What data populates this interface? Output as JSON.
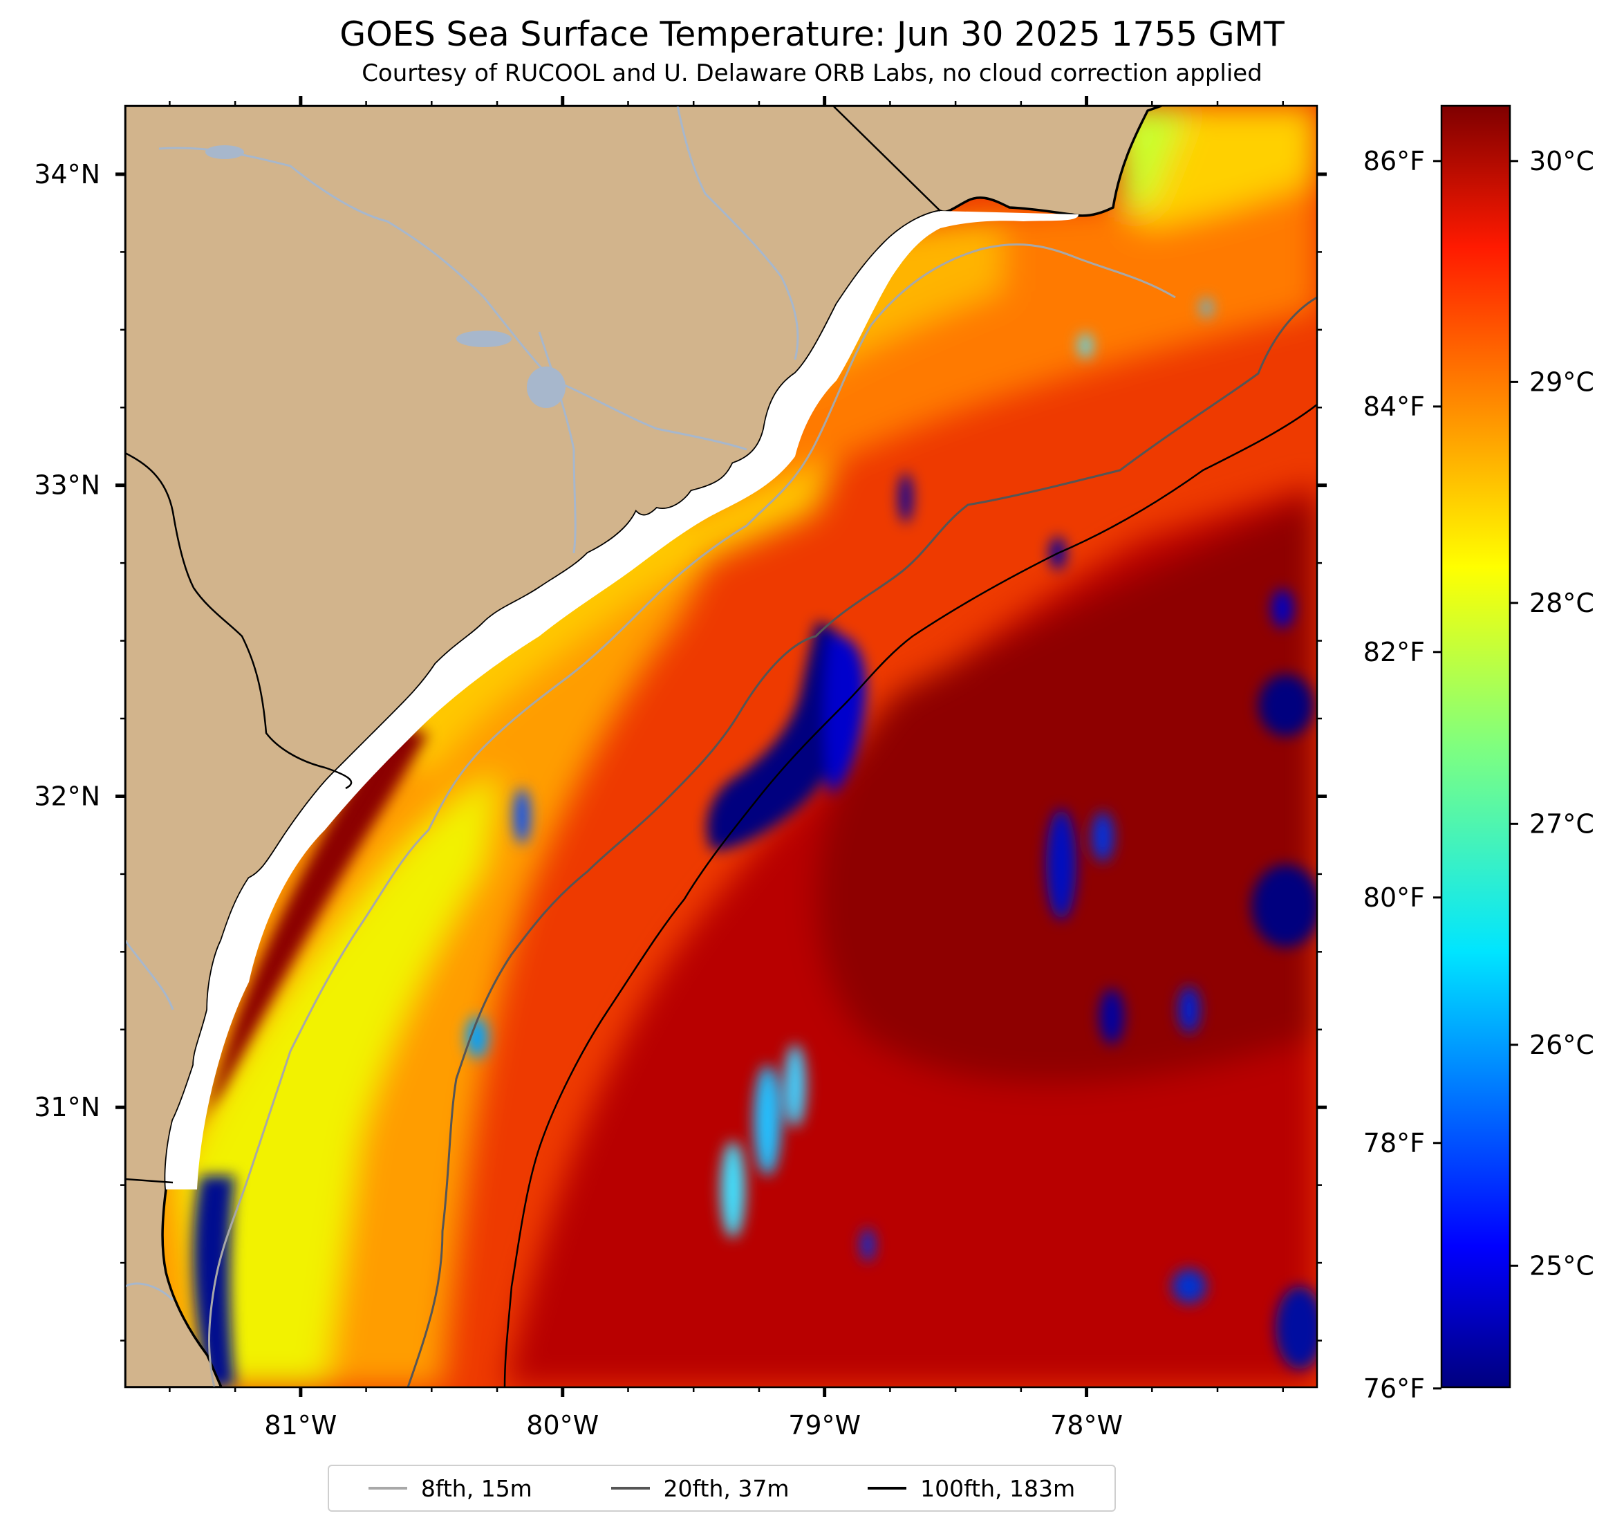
{
  "header": {
    "title": "GOES Sea Surface Temperature: Jun 30 2025 1755 GMT",
    "subtitle": "Courtesy of RUCOOL and U. Delaware ORB Labs, no cloud correction applied"
  },
  "map": {
    "lon_range": [
      -81.67,
      -77.12
    ],
    "lat_range": [
      30.1,
      34.22
    ],
    "lon_ticks": [
      {
        "value": -81,
        "label": "81°W"
      },
      {
        "value": -80,
        "label": "80°W"
      },
      {
        "value": -79,
        "label": "79°W"
      },
      {
        "value": -78,
        "label": "78°W"
      }
    ],
    "lat_ticks": [
      {
        "value": 34,
        "label": "34°N"
      },
      {
        "value": 33,
        "label": "33°N"
      },
      {
        "value": 32,
        "label": "32°N"
      },
      {
        "value": 31,
        "label": "31°N"
      }
    ],
    "colors": {
      "land": "#D2B48C",
      "river": "#a7b7cc",
      "coast": "#000000"
    }
  },
  "colorbar": {
    "celsius_range": [
      24.45,
      30.25
    ],
    "celsius_ticks": [
      {
        "value": 25,
        "label": "25°C"
      },
      {
        "value": 26,
        "label": "26°C"
      },
      {
        "value": 27,
        "label": "27°C"
      },
      {
        "value": 28,
        "label": "28°C"
      },
      {
        "value": 29,
        "label": "29°C"
      },
      {
        "value": 30,
        "label": "30°C"
      }
    ],
    "fahrenheit_ticks": [
      {
        "value": 76,
        "label": "76°F"
      },
      {
        "value": 78,
        "label": "78°F"
      },
      {
        "value": 80,
        "label": "80°F"
      },
      {
        "value": 82,
        "label": "82°F"
      },
      {
        "value": 84,
        "label": "84°F"
      },
      {
        "value": 86,
        "label": "86°F"
      }
    ],
    "colormap": "jet"
  },
  "legend": {
    "items": [
      {
        "label": "8fth, 15m",
        "color": "#a8a8a8"
      },
      {
        "label": "20fth, 37m",
        "color": "#555555"
      },
      {
        "label": "100fth, 183m",
        "color": "#000000"
      }
    ]
  }
}
